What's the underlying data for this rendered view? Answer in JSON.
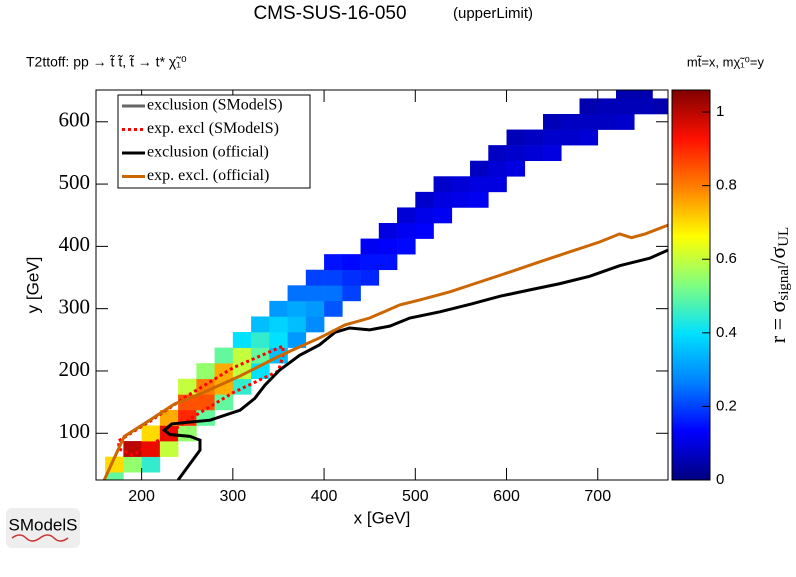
{
  "chart_data": {
    "type": "heatmap",
    "title": "CMS-SUS-16-050",
    "subtitle": "(upperLimit)",
    "process": "T2ttoff: pp → t̃ t̃, t̃ → t* χ̃₁⁰",
    "mass_label": "mt̃=x, mχ̃₁⁰=y",
    "xlabel": "x [GeV]",
    "ylabel": "y [GeV]",
    "zlabel": {
      "lead": "r = σ",
      "sub_signal": "signal",
      "mid": "/σ",
      "sub_ul": "UL"
    },
    "logo": "SModelS",
    "xlim": [
      150,
      777
    ],
    "ylim": [
      25,
      651
    ],
    "zlim": [
      0,
      1.06
    ],
    "xticks": [
      200,
      300,
      400,
      500,
      600,
      700
    ],
    "yticks": [
      100,
      200,
      300,
      400,
      500,
      600
    ],
    "zticks": [
      0,
      0.2,
      0.4,
      0.6,
      0.8,
      1
    ],
    "colorscale": [
      "#00007f",
      "#0000ff",
      "#0080ff",
      "#00e0ff",
      "#80ff80",
      "#ffff00",
      "#ff8000",
      "#ff1000",
      "#800000"
    ],
    "cells": [
      {
        "x": 170,
        "y": 25,
        "value": 0.5
      },
      {
        "x": 170,
        "y": 50,
        "value": 0.7
      },
      {
        "x": 190,
        "y": 50,
        "value": 0.55
      },
      {
        "x": 190,
        "y": 75,
        "value": 1.0
      },
      {
        "x": 210,
        "y": 50,
        "value": 0.45
      },
      {
        "x": 210,
        "y": 75,
        "value": 0.95
      },
      {
        "x": 210,
        "y": 100,
        "value": 0.7
      },
      {
        "x": 230,
        "y": 75,
        "value": 0.6
      },
      {
        "x": 230,
        "y": 100,
        "value": 0.95
      },
      {
        "x": 230,
        "y": 125,
        "value": 0.75
      },
      {
        "x": 250,
        "y": 100,
        "value": 0.55
      },
      {
        "x": 250,
        "y": 125,
        "value": 0.9
      },
      {
        "x": 250,
        "y": 150,
        "value": 0.85
      },
      {
        "x": 250,
        "y": 175,
        "value": 0.6
      },
      {
        "x": 270,
        "y": 125,
        "value": 0.5
      },
      {
        "x": 270,
        "y": 150,
        "value": 0.85
      },
      {
        "x": 270,
        "y": 175,
        "value": 0.8
      },
      {
        "x": 270,
        "y": 200,
        "value": 0.55
      },
      {
        "x": 290,
        "y": 150,
        "value": 0.5
      },
      {
        "x": 290,
        "y": 175,
        "value": 0.75
      },
      {
        "x": 290,
        "y": 200,
        "value": 0.75
      },
      {
        "x": 290,
        "y": 225,
        "value": 0.5
      },
      {
        "x": 310,
        "y": 175,
        "value": 0.45
      },
      {
        "x": 310,
        "y": 200,
        "value": 0.6
      },
      {
        "x": 310,
        "y": 225,
        "value": 0.6
      },
      {
        "x": 310,
        "y": 250,
        "value": 0.4
      },
      {
        "x": 330,
        "y": 200,
        "value": 0.4
      },
      {
        "x": 330,
        "y": 225,
        "value": 0.5
      },
      {
        "x": 330,
        "y": 250,
        "value": 0.45
      },
      {
        "x": 330,
        "y": 275,
        "value": 0.35
      },
      {
        "x": 350,
        "y": 225,
        "value": 0.35
      },
      {
        "x": 350,
        "y": 250,
        "value": 0.4
      },
      {
        "x": 350,
        "y": 275,
        "value": 0.38
      },
      {
        "x": 350,
        "y": 300,
        "value": 0.3
      },
      {
        "x": 370,
        "y": 250,
        "value": 0.3
      },
      {
        "x": 370,
        "y": 275,
        "value": 0.35
      },
      {
        "x": 370,
        "y": 300,
        "value": 0.32
      },
      {
        "x": 370,
        "y": 325,
        "value": 0.25
      },
      {
        "x": 390,
        "y": 275,
        "value": 0.28
      },
      {
        "x": 390,
        "y": 300,
        "value": 0.3
      },
      {
        "x": 390,
        "y": 325,
        "value": 0.25
      },
      {
        "x": 390,
        "y": 350,
        "value": 0.2
      },
      {
        "x": 410,
        "y": 300,
        "value": 0.22
      },
      {
        "x": 410,
        "y": 325,
        "value": 0.25
      },
      {
        "x": 410,
        "y": 350,
        "value": 0.2
      },
      {
        "x": 410,
        "y": 375,
        "value": 0.15
      },
      {
        "x": 430,
        "y": 325,
        "value": 0.2
      },
      {
        "x": 430,
        "y": 350,
        "value": 0.18
      },
      {
        "x": 430,
        "y": 375,
        "value": 0.14
      },
      {
        "x": 450,
        "y": 350,
        "value": 0.17
      },
      {
        "x": 450,
        "y": 375,
        "value": 0.15
      },
      {
        "x": 450,
        "y": 400,
        "value": 0.12
      },
      {
        "x": 470,
        "y": 375,
        "value": 0.15
      },
      {
        "x": 470,
        "y": 400,
        "value": 0.13
      },
      {
        "x": 470,
        "y": 425,
        "value": 0.1
      },
      {
        "x": 490,
        "y": 400,
        "value": 0.14
      },
      {
        "x": 490,
        "y": 425,
        "value": 0.12
      },
      {
        "x": 490,
        "y": 450,
        "value": 0.09
      },
      {
        "x": 510,
        "y": 425,
        "value": 0.13
      },
      {
        "x": 510,
        "y": 450,
        "value": 0.11
      },
      {
        "x": 510,
        "y": 475,
        "value": 0.08
      },
      {
        "x": 530,
        "y": 450,
        "value": 0.12
      },
      {
        "x": 530,
        "y": 475,
        "value": 0.1
      },
      {
        "x": 530,
        "y": 500,
        "value": 0.08
      },
      {
        "x": 550,
        "y": 475,
        "value": 0.11
      },
      {
        "x": 550,
        "y": 500,
        "value": 0.09
      },
      {
        "x": 570,
        "y": 475,
        "value": 0.12
      },
      {
        "x": 570,
        "y": 500,
        "value": 0.1
      },
      {
        "x": 570,
        "y": 525,
        "value": 0.07
      },
      {
        "x": 590,
        "y": 500,
        "value": 0.1
      },
      {
        "x": 590,
        "y": 525,
        "value": 0.09
      },
      {
        "x": 590,
        "y": 550,
        "value": 0.07
      },
      {
        "x": 610,
        "y": 525,
        "value": 0.1
      },
      {
        "x": 610,
        "y": 550,
        "value": 0.08
      },
      {
        "x": 610,
        "y": 575,
        "value": 0.06
      },
      {
        "x": 630,
        "y": 550,
        "value": 0.09
      },
      {
        "x": 630,
        "y": 575,
        "value": 0.07
      },
      {
        "x": 650,
        "y": 550,
        "value": 0.1
      },
      {
        "x": 650,
        "y": 575,
        "value": 0.08
      },
      {
        "x": 650,
        "y": 600,
        "value": 0.06
      },
      {
        "x": 670,
        "y": 575,
        "value": 0.08
      },
      {
        "x": 670,
        "y": 600,
        "value": 0.07
      },
      {
        "x": 690,
        "y": 575,
        "value": 0.09
      },
      {
        "x": 690,
        "y": 600,
        "value": 0.07
      },
      {
        "x": 690,
        "y": 625,
        "value": 0.05
      },
      {
        "x": 710,
        "y": 600,
        "value": 0.07
      },
      {
        "x": 710,
        "y": 625,
        "value": 0.06
      },
      {
        "x": 730,
        "y": 600,
        "value": 0.08
      },
      {
        "x": 730,
        "y": 625,
        "value": 0.06
      },
      {
        "x": 730,
        "y": 650,
        "value": 0.05
      },
      {
        "x": 750,
        "y": 625,
        "value": 0.06
      },
      {
        "x": 750,
        "y": 650,
        "value": 0.05
      },
      {
        "x": 770,
        "y": 625,
        "value": 0.05
      }
    ],
    "series": [
      {
        "name": "exclusion (SModelS)",
        "color": "#666666",
        "style": "solid",
        "x": [],
        "y": []
      },
      {
        "name": "exp. excl (SModelS)",
        "color": "#ff0000",
        "style": "dotted",
        "x": [
          175,
          210,
          250,
          300,
          355,
          355,
          350,
          300,
          255,
          220,
          190,
          175,
          175
        ],
        "y": [
          88,
          120,
          160,
          205,
          240,
          225,
          200,
          165,
          125,
          90,
          65,
          75,
          88
        ]
      },
      {
        "name": "exclusion (official)",
        "color": "#000000",
        "style": "solid",
        "x": [
          240,
          264,
          264,
          253,
          231,
          225,
          233,
          253,
          275,
          308,
          324,
          335,
          351,
          373,
          395,
          412,
          428,
          450,
          472,
          494,
          527,
          560,
          593,
          625,
          658,
          691,
          724,
          757,
          777
        ],
        "y": [
          25,
          73,
          89,
          95,
          98,
          105,
          115,
          118,
          121,
          137,
          156,
          177,
          201,
          225,
          242,
          262,
          269,
          266,
          272,
          285,
          295,
          307,
          320,
          330,
          340,
          352,
          369,
          381,
          394
        ]
      },
      {
        "name": "exp. excl. (official)",
        "color": "#cc6600",
        "style": "solid",
        "x": [
          159,
          174,
          181,
          209,
          236,
          264,
          308,
          351,
          395,
          423,
          450,
          483,
          505,
          538,
          571,
          604,
          636,
          669,
          702,
          724,
          737,
          752,
          777
        ],
        "y": [
          25,
          73,
          95,
          121,
          147,
          163,
          192,
          224,
          253,
          274,
          285,
          306,
          314,
          327,
          343,
          359,
          375,
          391,
          407,
          420,
          414,
          420,
          434
        ]
      }
    ]
  }
}
